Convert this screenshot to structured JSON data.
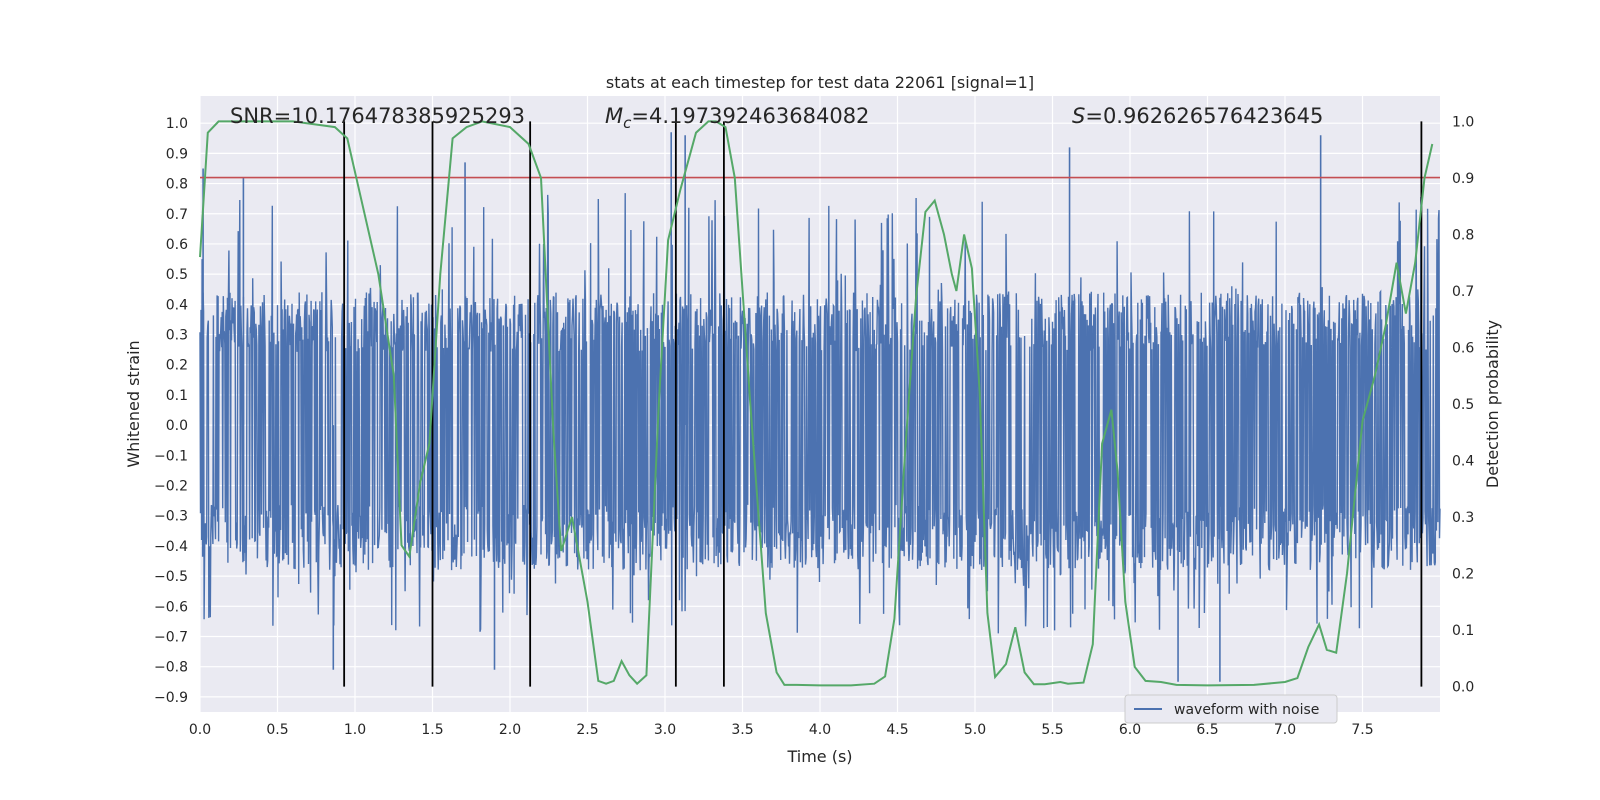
{
  "chart_data": {
    "type": "line",
    "title": "stats at each timestep for test data 22061 [signal=1]",
    "xlabel": "Time (s)",
    "ylabel": "Whitened strain",
    "y2label": "Detection probability",
    "xlim": [
      0.0,
      8.0
    ],
    "ylim": [
      -0.95,
      1.09
    ],
    "y2lim": [
      -0.045,
      1.045
    ],
    "xticks": [
      "0.0",
      "0.5",
      "1.0",
      "1.5",
      "2.0",
      "2.5",
      "3.0",
      "3.5",
      "4.0",
      "4.5",
      "5.0",
      "5.5",
      "6.0",
      "6.5",
      "7.0",
      "7.5"
    ],
    "yticks": [
      "1.0",
      "0.9",
      "0.8",
      "0.7",
      "0.6",
      "0.5",
      "0.4",
      "0.3",
      "0.2",
      "0.1",
      "0.0",
      "-0.1",
      "-0.2",
      "-0.3",
      "-0.4",
      "-0.5",
      "-0.6",
      "-0.7",
      "-0.8",
      "-0.9"
    ],
    "y2ticks": [
      "1.0",
      "0.9",
      "0.8",
      "0.7",
      "0.6",
      "0.5",
      "0.4",
      "0.3",
      "0.2",
      "0.1",
      "0.0"
    ],
    "grid": true,
    "legend": {
      "placement": "lower right",
      "entries": [
        "waveform with noise"
      ]
    },
    "annotations": {
      "snr": "SNR=10.176478385925293",
      "mc_symbol": "M",
      "mc_sub": "c",
      "mc_value": "=4.197392463684082",
      "s_symbol": "S",
      "s_value": "=0.962626576423645"
    },
    "waveform": {
      "name": "waveform with noise",
      "color": "#4c72b0",
      "x_range": [
        0.0,
        8.0
      ],
      "approx_envelope": {
        "dense_min": -0.48,
        "dense_max": 0.44,
        "peak_min": -0.85,
        "peak_max": 0.97
      },
      "notable_peaks": [
        {
          "x": 0.02,
          "y": 0.85
        },
        {
          "x": 0.28,
          "y": 0.82
        },
        {
          "x": 1.71,
          "y": 0.87
        },
        {
          "x": 3.04,
          "y": 0.97
        },
        {
          "x": 3.13,
          "y": 0.96
        },
        {
          "x": 5.61,
          "y": 0.92
        },
        {
          "x": 7.23,
          "y": 0.96
        },
        {
          "x": 1.9,
          "y": -0.81
        },
        {
          "x": 0.86,
          "y": -0.81
        },
        {
          "x": 6.31,
          "y": -0.85
        },
        {
          "x": 6.58,
          "y": -0.85
        }
      ]
    },
    "threshold": {
      "y": 0.82,
      "color": "#c44e52"
    },
    "detection_probability": {
      "color": "#55a868",
      "points": [
        [
          0.0,
          0.76
        ],
        [
          0.05,
          0.98
        ],
        [
          0.12,
          1.0
        ],
        [
          0.6,
          1.0
        ],
        [
          0.87,
          0.99
        ],
        [
          0.95,
          0.97
        ],
        [
          1.05,
          0.85
        ],
        [
          1.15,
          0.73
        ],
        [
          1.25,
          0.55
        ],
        [
          1.3,
          0.25
        ],
        [
          1.35,
          0.23
        ],
        [
          1.42,
          0.36
        ],
        [
          1.48,
          0.43
        ],
        [
          1.55,
          0.73
        ],
        [
          1.63,
          0.97
        ],
        [
          1.72,
          0.99
        ],
        [
          1.82,
          1.0
        ],
        [
          2.0,
          0.99
        ],
        [
          2.12,
          0.96
        ],
        [
          2.2,
          0.9
        ],
        [
          2.28,
          0.45
        ],
        [
          2.33,
          0.24
        ],
        [
          2.4,
          0.3
        ],
        [
          2.5,
          0.15
        ],
        [
          2.57,
          0.01
        ],
        [
          2.62,
          0.005
        ],
        [
          2.67,
          0.01
        ],
        [
          2.72,
          0.045
        ],
        [
          2.77,
          0.02
        ],
        [
          2.82,
          0.005
        ],
        [
          2.88,
          0.02
        ],
        [
          2.96,
          0.5
        ],
        [
          3.02,
          0.79
        ],
        [
          3.1,
          0.88
        ],
        [
          3.2,
          0.98
        ],
        [
          3.28,
          1.0
        ],
        [
          3.33,
          1.0
        ],
        [
          3.39,
          0.99
        ],
        [
          3.45,
          0.9
        ],
        [
          3.55,
          0.5
        ],
        [
          3.65,
          0.13
        ],
        [
          3.72,
          0.025
        ],
        [
          3.77,
          0.003
        ],
        [
          3.85,
          0.003
        ],
        [
          4.0,
          0.002
        ],
        [
          4.2,
          0.002
        ],
        [
          4.35,
          0.005
        ],
        [
          4.42,
          0.018
        ],
        [
          4.48,
          0.12
        ],
        [
          4.55,
          0.42
        ],
        [
          4.62,
          0.69
        ],
        [
          4.68,
          0.84
        ],
        [
          4.74,
          0.86
        ],
        [
          4.8,
          0.8
        ],
        [
          4.85,
          0.73
        ],
        [
          4.88,
          0.7
        ],
        [
          4.93,
          0.8
        ],
        [
          4.98,
          0.74
        ],
        [
          5.03,
          0.52
        ],
        [
          5.08,
          0.13
        ],
        [
          5.13,
          0.017
        ],
        [
          5.2,
          0.04
        ],
        [
          5.26,
          0.105
        ],
        [
          5.32,
          0.025
        ],
        [
          5.38,
          0.004
        ],
        [
          5.45,
          0.004
        ],
        [
          5.55,
          0.008
        ],
        [
          5.6,
          0.005
        ],
        [
          5.7,
          0.007
        ],
        [
          5.76,
          0.075
        ],
        [
          5.82,
          0.43
        ],
        [
          5.88,
          0.49
        ],
        [
          5.92,
          0.38
        ],
        [
          5.97,
          0.15
        ],
        [
          6.03,
          0.035
        ],
        [
          6.1,
          0.01
        ],
        [
          6.2,
          0.008
        ],
        [
          6.3,
          0.003
        ],
        [
          6.5,
          0.002
        ],
        [
          6.8,
          0.003
        ],
        [
          7.0,
          0.008
        ],
        [
          7.08,
          0.015
        ],
        [
          7.15,
          0.07
        ],
        [
          7.22,
          0.11
        ],
        [
          7.27,
          0.065
        ],
        [
          7.33,
          0.06
        ],
        [
          7.4,
          0.2
        ],
        [
          7.5,
          0.47
        ],
        [
          7.58,
          0.55
        ],
        [
          7.65,
          0.64
        ],
        [
          7.72,
          0.75
        ],
        [
          7.78,
          0.66
        ],
        [
          7.84,
          0.75
        ],
        [
          7.9,
          0.9
        ],
        [
          7.95,
          0.96
        ]
      ]
    },
    "vertical_markers": {
      "color": "#000000",
      "x": [
        0.93,
        1.5,
        2.13,
        3.07,
        3.38,
        7.88
      ]
    }
  }
}
